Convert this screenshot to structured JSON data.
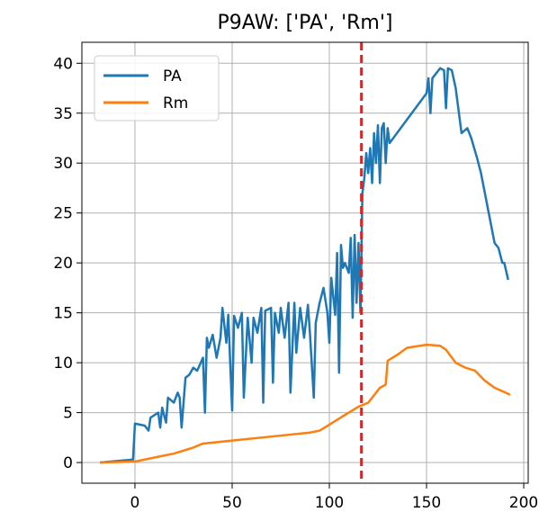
{
  "chart_data": {
    "type": "line",
    "title": "P9AW: ['PA', 'Rm']",
    "series": [
      {
        "name": "PA",
        "color": "#1f77b4",
        "x": [
          -18,
          -1,
          0,
          5,
          7,
          8,
          12,
          13,
          14,
          16,
          17,
          20,
          22,
          23,
          24,
          26,
          28,
          30,
          32,
          35,
          36,
          37,
          38,
          40,
          42,
          44,
          45,
          47,
          48,
          50,
          51,
          53,
          55,
          56,
          58,
          60,
          61,
          63,
          65,
          66,
          67,
          70,
          71,
          72,
          74,
          75,
          77,
          79,
          80,
          82,
          83,
          85,
          87,
          89,
          90,
          92,
          93,
          95,
          97,
          99,
          100,
          101,
          103,
          104,
          105,
          106,
          107,
          108,
          110,
          111,
          112,
          113,
          114,
          115,
          116,
          117,
          118,
          119,
          120,
          121,
          122,
          123,
          124,
          125,
          126,
          127,
          128,
          129,
          130,
          131,
          150,
          151,
          152,
          153,
          157,
          159,
          160,
          161,
          163,
          165,
          168,
          171,
          173,
          176,
          178,
          180,
          182,
          183,
          185,
          187,
          189,
          190,
          192
        ],
        "values": [
          0,
          0.3,
          3.9,
          3.7,
          3.2,
          4.5,
          5.0,
          3.5,
          5.5,
          4.0,
          6.5,
          6.0,
          7.0,
          6.5,
          3.5,
          8.5,
          8.8,
          9.5,
          9.2,
          10.5,
          5.0,
          12.5,
          11.5,
          12.8,
          10.5,
          12.5,
          15.5,
          12.0,
          14.8,
          5.2,
          14.7,
          13.5,
          15.0,
          6.5,
          14.5,
          10.0,
          14.5,
          13.0,
          15.5,
          6.0,
          15.2,
          15.5,
          8.0,
          15.0,
          13.0,
          15.5,
          12.5,
          16.0,
          7.0,
          16.0,
          11.0,
          15.5,
          12.5,
          15.8,
          13.0,
          6.5,
          14.0,
          16.0,
          17.5,
          15.0,
          12.0,
          18.5,
          14.8,
          21.0,
          9.0,
          21.8,
          19.5,
          20.0,
          19.0,
          22.5,
          14.5,
          22.8,
          16.0,
          22.0,
          15.0,
          27.0,
          28.5,
          31.0,
          29.0,
          31.5,
          28.0,
          33.0,
          30.0,
          33.8,
          28.0,
          33.5,
          34.0,
          30.0,
          33.5,
          32.0,
          37.0,
          38.5,
          35.0,
          38.5,
          39.5,
          39.3,
          35.5,
          39.5,
          39.3,
          37.5,
          33.0,
          33.5,
          32.5,
          30.5,
          29.0,
          27.0,
          25.0,
          24.0,
          22.0,
          21.5,
          20.0,
          20.0,
          18.3
        ]
      },
      {
        "name": "Rm",
        "color": "#ff7f0e",
        "x": [
          -18,
          0,
          10,
          20,
          30,
          35,
          50,
          70,
          90,
          95,
          100,
          105,
          110,
          115,
          120,
          126,
          129,
          130,
          135,
          140,
          150,
          157,
          160,
          165,
          170,
          175,
          180,
          185,
          193
        ],
        "values": [
          0,
          0.1,
          0.5,
          0.9,
          1.5,
          1.9,
          2.2,
          2.6,
          3.0,
          3.2,
          3.8,
          4.4,
          5.0,
          5.6,
          6.0,
          7.5,
          7.8,
          10.2,
          10.8,
          11.5,
          11.8,
          11.7,
          11.3,
          10.0,
          9.5,
          9.2,
          8.2,
          7.5,
          6.8
        ]
      }
    ],
    "vline": {
      "x": 116.5,
      "color": "#d62728"
    },
    "xlim": [
      -27.3,
      202.3
    ],
    "ylim": [
      -2.07,
      42.1
    ],
    "xticks": [
      0,
      50,
      100,
      150,
      200
    ],
    "yticks": [
      0,
      5,
      10,
      15,
      20,
      25,
      30,
      35,
      40
    ],
    "grid": true,
    "legend": "upper left"
  }
}
